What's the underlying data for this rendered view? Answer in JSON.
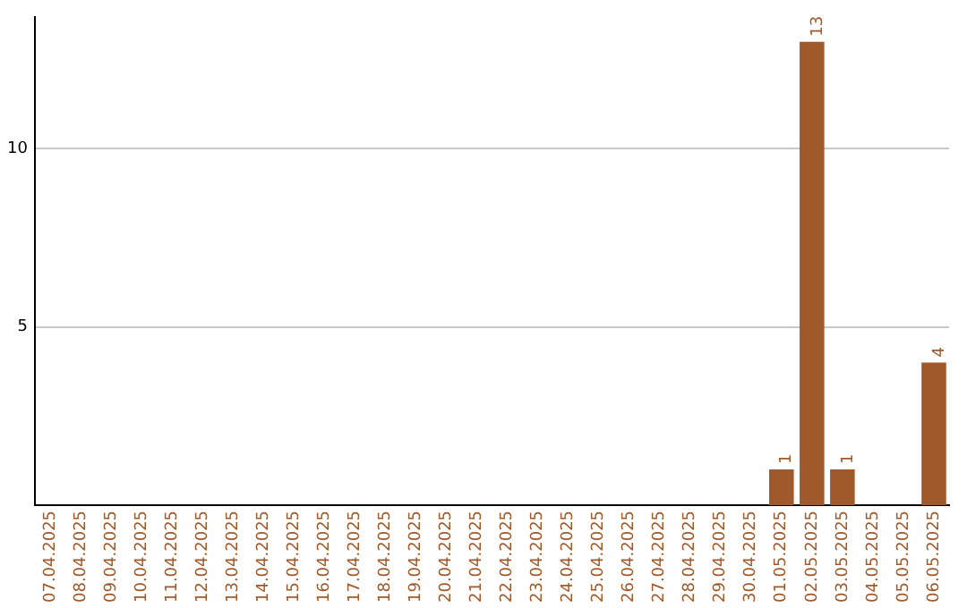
{
  "chart_data": {
    "type": "bar",
    "categories": [
      "07.04.2025",
      "08.04.2025",
      "09.04.2025",
      "10.04.2025",
      "11.04.2025",
      "12.04.2025",
      "13.04.2025",
      "14.04.2025",
      "15.04.2025",
      "16.04.2025",
      "17.04.2025",
      "18.04.2025",
      "19.04.2025",
      "20.04.2025",
      "21.04.2025",
      "22.04.2025",
      "23.04.2025",
      "24.04.2025",
      "25.04.2025",
      "26.04.2025",
      "27.04.2025",
      "28.04.2025",
      "29.04.2025",
      "30.04.2025",
      "01.05.2025",
      "02.05.2025",
      "03.05.2025",
      "04.05.2025",
      "05.05.2025",
      "06.05.2025"
    ],
    "values": [
      0,
      0,
      0,
      0,
      0,
      0,
      0,
      0,
      0,
      0,
      0,
      0,
      0,
      0,
      0,
      0,
      0,
      0,
      0,
      0,
      0,
      0,
      0,
      0,
      1,
      13,
      1,
      0,
      0,
      4
    ],
    "value_labels": [
      null,
      null,
      null,
      null,
      null,
      null,
      null,
      null,
      null,
      null,
      null,
      null,
      null,
      null,
      null,
      null,
      null,
      null,
      null,
      null,
      null,
      null,
      null,
      null,
      "1",
      "13",
      "1",
      null,
      null,
      "4"
    ],
    "color": "#a0592a",
    "ylim": [
      0,
      13.7
    ],
    "yticks": [
      5,
      10
    ],
    "grid": "y",
    "legend": false
  }
}
